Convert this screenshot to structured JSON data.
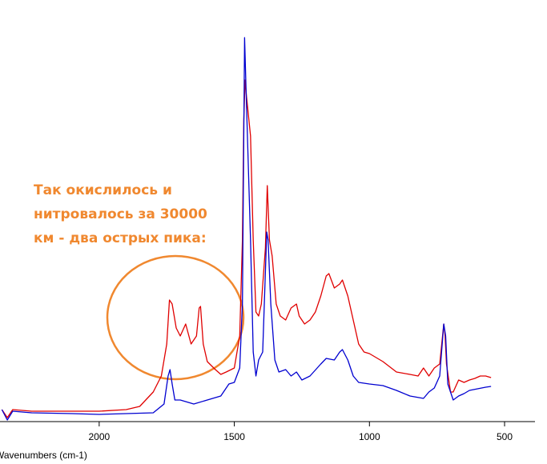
{
  "chart_data": {
    "type": "line",
    "xlabel": "Wavenumbers (cm-1)",
    "annotation": [
      "Так окислилось и",
      "нитровалось за 30000",
      "км - два острых пика:"
    ],
    "xlim": [
      2367,
      343
    ],
    "xticks": [
      2000,
      1500,
      1000,
      500
    ],
    "ylim": [
      0,
      490
    ],
    "series": [
      {
        "name": "red",
        "color": "#e00000",
        "x": [
          2360,
          2340,
          2320,
          2250,
          2100,
          2000,
          1900,
          1850,
          1800,
          1770,
          1750,
          1740,
          1730,
          1715,
          1700,
          1680,
          1660,
          1640,
          1630,
          1625,
          1615,
          1600,
          1570,
          1550,
          1530,
          1500,
          1480,
          1470,
          1465,
          1460,
          1455,
          1440,
          1430,
          1420,
          1410,
          1400,
          1385,
          1378,
          1370,
          1360,
          1345,
          1330,
          1310,
          1290,
          1270,
          1260,
          1240,
          1220,
          1200,
          1180,
          1160,
          1150,
          1130,
          1110,
          1100,
          1080,
          1060,
          1040,
          1020,
          1000,
          950,
          900,
          850,
          820,
          800,
          780,
          760,
          740,
          725,
          720,
          715,
          700,
          690,
          670,
          650,
          630,
          610,
          590,
          570,
          550
        ],
        "values": [
          18,
          8,
          18,
          16,
          16,
          16,
          18,
          22,
          40,
          60,
          100,
          155,
          150,
          120,
          110,
          125,
          100,
          110,
          145,
          147,
          100,
          78,
          68,
          62,
          65,
          70,
          110,
          230,
          380,
          430,
          410,
          360,
          230,
          140,
          135,
          150,
          220,
          298,
          230,
          210,
          150,
          135,
          130,
          145,
          150,
          135,
          125,
          130,
          140,
          160,
          185,
          188,
          170,
          175,
          180,
          160,
          130,
          100,
          90,
          88,
          78,
          65,
          62,
          60,
          70,
          60,
          70,
          75,
          125,
          110,
          75,
          40,
          40,
          55,
          52,
          55,
          57,
          60,
          60,
          58
        ]
      },
      {
        "name": "blue",
        "color": "#0000d0",
        "x": [
          2360,
          2340,
          2320,
          2250,
          2100,
          2000,
          1900,
          1800,
          1760,
          1745,
          1738,
          1730,
          1720,
          1700,
          1650,
          1600,
          1550,
          1520,
          1500,
          1480,
          1470,
          1462,
          1455,
          1440,
          1430,
          1420,
          1410,
          1395,
          1380,
          1375,
          1365,
          1350,
          1335,
          1310,
          1290,
          1270,
          1250,
          1220,
          1180,
          1160,
          1130,
          1110,
          1100,
          1080,
          1060,
          1040,
          1000,
          950,
          900,
          850,
          800,
          780,
          760,
          740,
          725,
          718,
          710,
          690,
          670,
          650,
          630,
          600,
          570,
          550
        ],
        "values": [
          18,
          5,
          16,
          14,
          13,
          12,
          13,
          14,
          25,
          60,
          68,
          50,
          30,
          30,
          25,
          30,
          35,
          50,
          52,
          70,
          150,
          483,
          400,
          230,
          90,
          60,
          80,
          90,
          240,
          230,
          150,
          80,
          65,
          68,
          60,
          65,
          55,
          60,
          75,
          82,
          80,
          90,
          93,
          80,
          60,
          52,
          50,
          48,
          42,
          35,
          32,
          40,
          45,
          60,
          125,
          110,
          50,
          30,
          35,
          38,
          42,
          44,
          46,
          47
        ]
      }
    ]
  }
}
